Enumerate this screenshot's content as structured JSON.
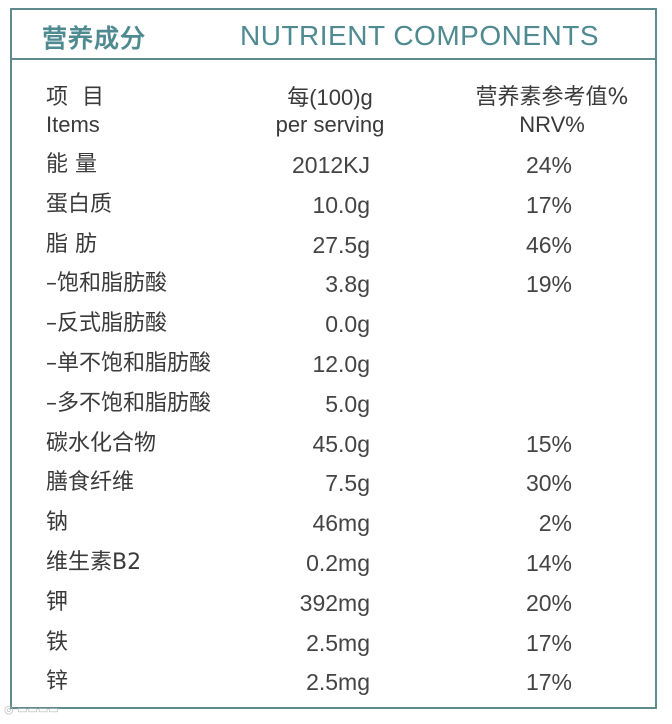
{
  "header": {
    "title_cn": "营养成分",
    "title_en": "NUTRIENT COMPONENTS"
  },
  "columns": {
    "items_cn": "项目",
    "items_en": "Items",
    "serving_cn": "每(100)g",
    "serving_en": "per serving",
    "nrv_cn": "营养素参考值%",
    "nrv_en": "NRV%"
  },
  "rows": [
    {
      "name": "能 量",
      "value": "2012KJ",
      "nrv": "24%"
    },
    {
      "name": "蛋白质",
      "value": "10.0g",
      "nrv": "17%"
    },
    {
      "name": "脂 肪",
      "value": "27.5g",
      "nrv": "46%"
    },
    {
      "name": "–饱和脂肪酸",
      "value": "3.8g",
      "nrv": "19%"
    },
    {
      "name": "–反式脂肪酸",
      "value": "0.0g",
      "nrv": ""
    },
    {
      "name": "–单不饱和脂肪酸",
      "value": "12.0g",
      "nrv": ""
    },
    {
      "name": "–多不饱和脂肪酸",
      "value": "5.0g",
      "nrv": ""
    },
    {
      "name": "碳水化合物",
      "value": "45.0g",
      "nrv": "15%"
    },
    {
      "name": "膳食纤维",
      "value": "7.5g",
      "nrv": "30%"
    },
    {
      "name": "钠",
      "value": "46mg",
      "nrv": "2%"
    },
    {
      "name": "维生素B2",
      "value": "0.2mg",
      "nrv": "14%"
    },
    {
      "name": "钾",
      "value": "392mg",
      "nrv": "20%"
    },
    {
      "name": "铁",
      "value": "2.5mg",
      "nrv": "17%"
    },
    {
      "name": "锌",
      "value": "2.5mg",
      "nrv": "17%"
    }
  ],
  "colors": {
    "accent": "#4f8a90",
    "border": "#5f8a8e",
    "text": "#3a3a3a"
  }
}
